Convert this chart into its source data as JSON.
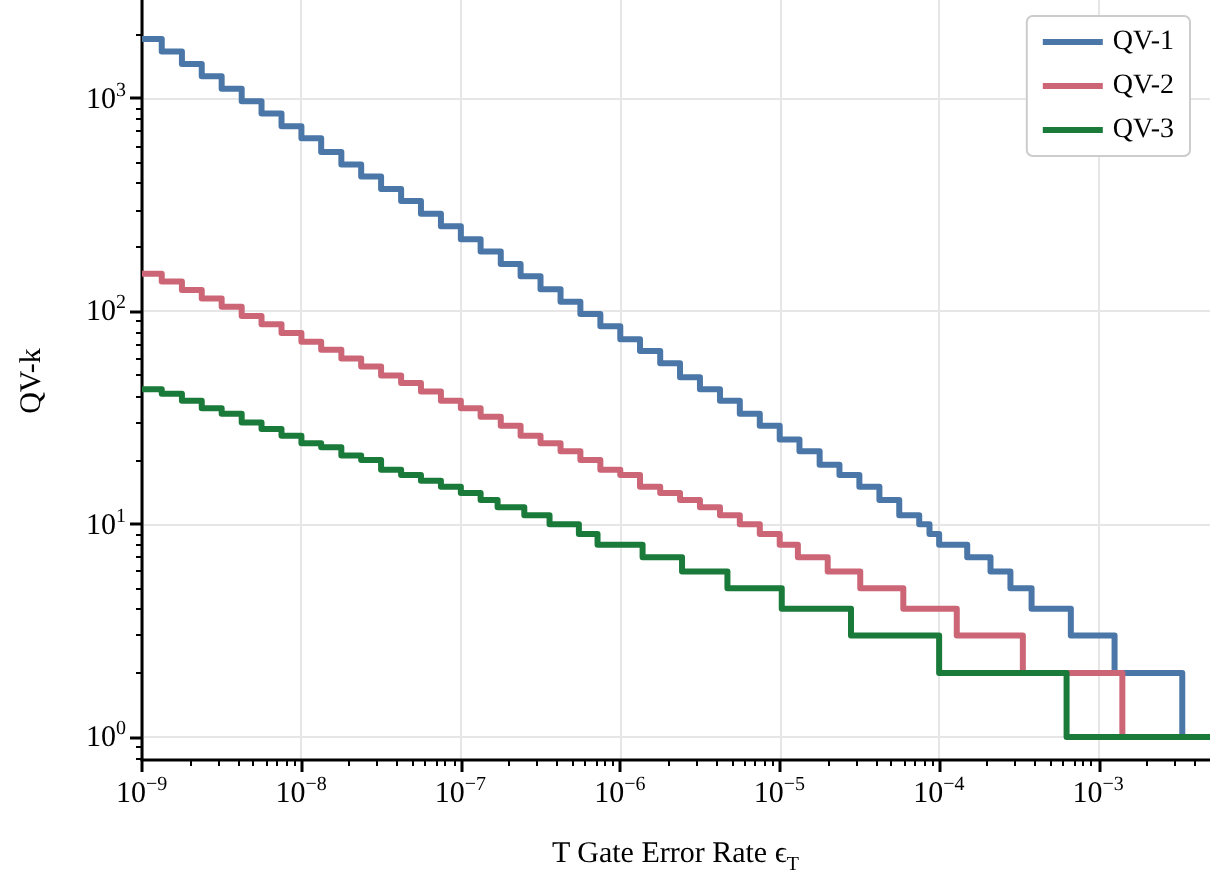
{
  "chart_data": {
    "type": "step",
    "xlabel": "T Gate Error Rate ϵ$_{T}$",
    "ylabel": "QV-k",
    "log": "xy",
    "grid": true,
    "legend": "top right",
    "marker": "none",
    "line_style": "solid",
    "xlim": [
      1e-09,
      0.005
    ],
    "ylim": [
      0.78,
      2900
    ],
    "xticks": [
      {
        "value": 1e-09,
        "label": "10$^{−9}$"
      },
      {
        "value": 1e-08,
        "label": "10$^{−8}$"
      },
      {
        "value": 1e-07,
        "label": "10$^{−7}$"
      },
      {
        "value": 1e-06,
        "label": "10$^{−6}$"
      },
      {
        "value": 1e-05,
        "label": "10$^{−5}$"
      },
      {
        "value": 0.0001,
        "label": "10$^{−4}$"
      },
      {
        "value": 0.001,
        "label": "10$^{−3}$"
      }
    ],
    "yticks": [
      {
        "value": 1,
        "label": "10$^{0}$"
      },
      {
        "value": 10,
        "label": "10$^{1}$"
      },
      {
        "value": 100,
        "label": "10$^{2}$"
      },
      {
        "value": 1000,
        "label": "10$^{3}$"
      }
    ],
    "series": [
      {
        "name": "QV-1",
        "color": "#4a77a8",
        "x": [
          1e-09,
          1.33e-09,
          1.78e-09,
          2.37e-09,
          3.16e-09,
          4.22e-09,
          5.62e-09,
          7.5e-09,
          1e-08,
          1.33e-08,
          1.78e-08,
          2.37e-08,
          3.16e-08,
          4.22e-08,
          5.62e-08,
          7.5e-08,
          1e-07,
          1.33e-07,
          1.78e-07,
          2.37e-07,
          3.16e-07,
          4.22e-07,
          5.62e-07,
          7.5e-07,
          1e-06,
          1.33e-06,
          1.78e-06,
          2.37e-06,
          3.16e-06,
          4.22e-06,
          5.62e-06,
          7.5e-06,
          1e-05,
          1.33e-05,
          1.78e-05,
          2.37e-05,
          3.16e-05,
          4.22e-05,
          5.62e-05,
          7.5e-05,
          8.7e-05,
          0.0001,
          0.00015,
          0.00021,
          0.00028,
          0.00038,
          0.00067,
          0.00126,
          0.00335,
          0.005
        ],
        "values": [
          1900,
          1660,
          1450,
          1270,
          1110,
          970,
          850,
          740,
          650,
          560,
          490,
          430,
          375,
          330,
          287,
          251,
          218,
          191,
          167,
          146,
          127,
          111,
          97,
          85,
          74,
          65,
          57,
          49,
          43,
          38,
          33,
          29,
          25,
          22,
          19,
          17,
          15,
          13,
          11,
          10,
          9,
          8,
          7,
          6,
          5,
          4,
          3,
          2,
          1,
          1
        ]
      },
      {
        "name": "QV-2",
        "color": "#cc6677",
        "x": [
          1e-09,
          1.33e-09,
          1.78e-09,
          2.37e-09,
          3.16e-09,
          4.22e-09,
          5.62e-09,
          7.5e-09,
          1e-08,
          1.33e-08,
          1.78e-08,
          2.37e-08,
          3.16e-08,
          4.22e-08,
          5.62e-08,
          7.5e-08,
          1e-07,
          1.33e-07,
          1.78e-07,
          2.37e-07,
          3.16e-07,
          4.22e-07,
          5.62e-07,
          7.5e-07,
          1e-06,
          1.33e-06,
          1.78e-06,
          2.37e-06,
          3.16e-06,
          4.22e-06,
          5.62e-06,
          7.5e-06,
          1e-05,
          1.3e-05,
          2e-05,
          3.2e-05,
          5.96e-05,
          0.000129,
          0.000335,
          0.00141,
          0.005
        ],
        "values": [
          150,
          138,
          126,
          115,
          105,
          95,
          87,
          79,
          72,
          66,
          60,
          55,
          50,
          46,
          42,
          38,
          35,
          32,
          29,
          26,
          24,
          22,
          20,
          18,
          17,
          15,
          14,
          13,
          12,
          11,
          10,
          9,
          8,
          7,
          6,
          5,
          4,
          3,
          2,
          1,
          1
        ]
      },
      {
        "name": "QV-3",
        "color": "#1a7a3a",
        "x": [
          1e-09,
          1.33e-09,
          1.78e-09,
          2.37e-09,
          3.16e-09,
          4.22e-09,
          5.62e-09,
          7.5e-09,
          1e-08,
          1.33e-08,
          1.78e-08,
          2.37e-08,
          3.16e-08,
          4.22e-08,
          5.62e-08,
          7.5e-08,
          1e-07,
          1.33e-07,
          1.7e-07,
          2.5e-07,
          3.6e-07,
          5.5e-07,
          7.2e-07,
          1.38e-06,
          2.44e-06,
          4.7e-06,
          1.03e-05,
          2.8e-05,
          0.0001,
          0.00063,
          0.005
        ],
        "values": [
          43,
          41,
          38,
          35,
          33,
          30,
          28,
          26,
          24,
          23,
          21,
          20,
          18,
          17,
          16,
          15,
          14,
          13,
          12,
          11,
          10,
          9,
          8,
          7,
          6,
          5,
          4,
          3,
          2,
          1,
          1
        ]
      }
    ]
  }
}
